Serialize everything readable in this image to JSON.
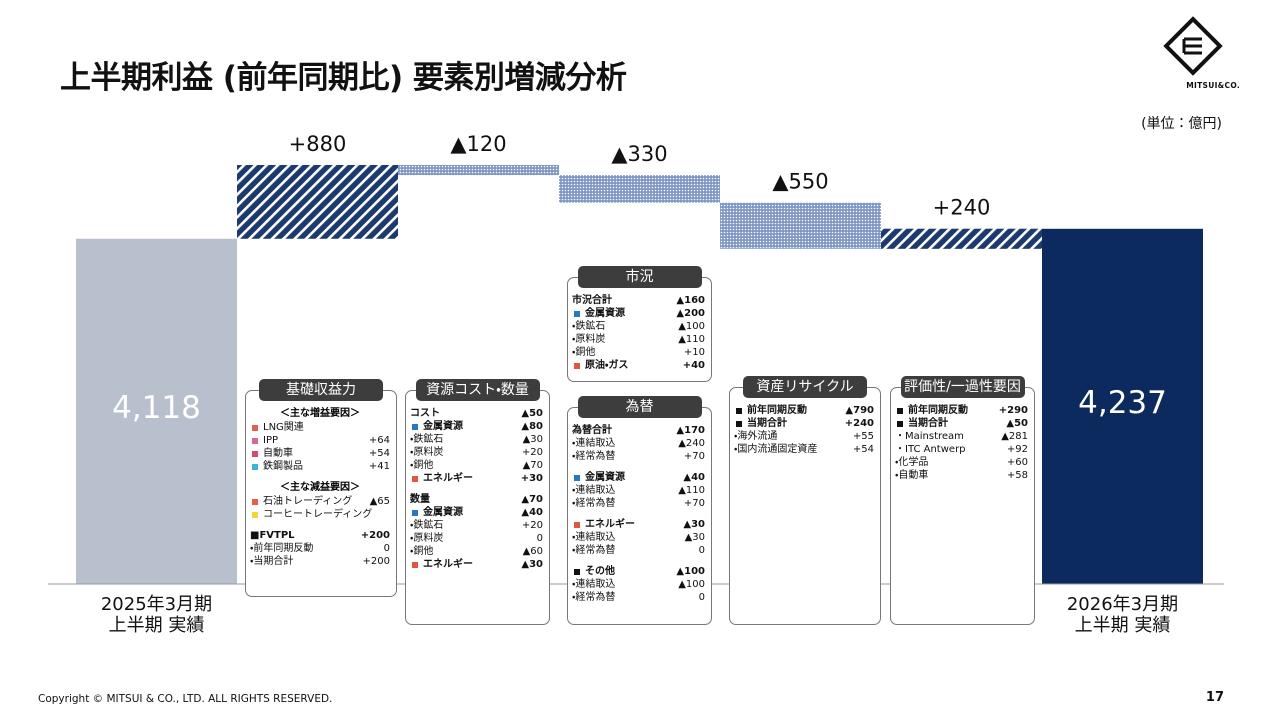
{
  "header": {
    "title": "上半期利益 (前年同期比) 要素別増減分析",
    "unit": "(単位：億円)"
  },
  "logo": {
    "text": "MITSUI&CO."
  },
  "chart_data": {
    "type": "waterfall",
    "categories": [
      "2025年3月期\n上半期 実績",
      null,
      null,
      null,
      null,
      null,
      "2026年3月期\n上半期 実績"
    ],
    "values": [
      4118,
      880,
      -120,
      -330,
      -550,
      240,
      4237
    ],
    "value_labels": [
      "4,118",
      "+880",
      "▲120",
      "▲330",
      "▲550",
      "+240",
      "4,237"
    ],
    "colors": {
      "start": "#b9c0cd",
      "end": "#0c2a5e",
      "increase": "#1d3a6e",
      "decrease": "#7d96c4"
    }
  },
  "panels": [
    {
      "title": "基礎収益力",
      "groups": [
        {
          "heading": "＜主な増益要因＞",
          "rows": [
            {
              "label": "LNG関連",
              "color": "#e2604f"
            },
            {
              "label": "IPP",
              "value": "+64",
              "color": "#d9679b"
            },
            {
              "label": "自動車",
              "value": "+54",
              "color": "#d34c6c"
            },
            {
              "label": "鉄鋼製品",
              "value": "+41",
              "color": "#3fb4d8"
            }
          ]
        },
        {
          "heading": "＜主な減益要因＞",
          "rows": [
            {
              "label": "石油トレーディング",
              "value": "▲65",
              "color": "#e2604f"
            },
            {
              "label": "コーヒートレーディング",
              "color": "#f3d53c"
            }
          ]
        },
        {
          "rows": [
            {
              "label": "■FVTPL",
              "value": "+200",
              "bold": true
            },
            {
              "label": "・前年同期反動",
              "value": "0"
            },
            {
              "label": "・当期合計",
              "value": "+200"
            }
          ]
        }
      ]
    },
    {
      "title": "資源コスト・数量",
      "groups": [
        {
          "rows": [
            {
              "label": "コスト",
              "value": "▲50",
              "bold": true
            },
            {
              "label": "金属資源",
              "value": "▲80",
              "bold": true,
              "color": "#2878c0"
            },
            {
              "label": "・鉄鉱石",
              "value": "▲30"
            },
            {
              "label": "・原料炭",
              "value": "+20"
            },
            {
              "label": "・銅他",
              "value": "▲70"
            },
            {
              "label": "エネルギー",
              "value": "+30",
              "bold": true,
              "color": "#e2553f"
            }
          ]
        },
        {
          "rows": [
            {
              "label": "数量",
              "value": "▲70",
              "bold": true
            },
            {
              "label": "金属資源",
              "value": "▲40",
              "bold": true,
              "color": "#2878c0"
            },
            {
              "label": "・鉄鉱石",
              "value": "+20"
            },
            {
              "label": "・原料炭",
              "value": "0"
            },
            {
              "label": "・銅他",
              "value": "▲60"
            },
            {
              "label": "エネルギー",
              "value": "▲30",
              "bold": true,
              "color": "#e2553f"
            }
          ]
        }
      ]
    },
    {
      "title": "市況",
      "groups": [
        {
          "rows": [
            {
              "label": "市況合計",
              "value": "▲160",
              "bold": true
            },
            {
              "label": "金属資源",
              "value": "▲200",
              "bold": true,
              "color": "#2878c0"
            },
            {
              "label": "・鉄鉱石",
              "value": "▲100"
            },
            {
              "label": "・原料炭",
              "value": "▲110"
            },
            {
              "label": "・銅他",
              "value": "+10"
            },
            {
              "label": "原油・ガス",
              "value": "+40",
              "bold": true,
              "color": "#e2553f"
            }
          ]
        }
      ]
    },
    {
      "title": "為替",
      "groups": [
        {
          "rows": [
            {
              "label": "為替合計",
              "value": "▲170",
              "bold": true
            },
            {
              "label": "・連結取込",
              "value": "▲240"
            },
            {
              "label": "・経常為替",
              "value": "+70"
            }
          ]
        },
        {
          "rows": [
            {
              "label": "金属資源",
              "value": "▲40",
              "bold": true,
              "color": "#2878c0"
            },
            {
              "label": "・連結取込",
              "value": "▲110"
            },
            {
              "label": "・経常為替",
              "value": "+70"
            }
          ]
        },
        {
          "rows": [
            {
              "label": "エネルギー",
              "value": "▲30",
              "bold": true,
              "color": "#e2553f"
            },
            {
              "label": "・連結取込",
              "value": "▲30"
            },
            {
              "label": "・経常為替",
              "value": "0"
            }
          ]
        },
        {
          "rows": [
            {
              "label": "その他",
              "value": "▲100",
              "bold": true,
              "color": "#111111"
            },
            {
              "label": "・連結取込",
              "value": "▲100"
            },
            {
              "label": "・経常為替",
              "value": "0"
            }
          ]
        }
      ]
    },
    {
      "title": "資産リサイクル",
      "groups": [
        {
          "rows": [
            {
              "label": "前年同期反動",
              "value": "▲790",
              "bold": true,
              "color": "#111111"
            },
            {
              "label": "当期合計",
              "value": "+240",
              "bold": true,
              "color": "#111111"
            },
            {
              "label": "・海外流通",
              "value": "+55"
            },
            {
              "label": "・国内流通固定資産",
              "value": "+54"
            }
          ]
        }
      ]
    },
    {
      "title": "評価性/一過性要因",
      "groups": [
        {
          "rows": [
            {
              "label": "前年同期反動",
              "value": "+290",
              "bold": true,
              "color": "#111111"
            },
            {
              "label": "当期合計",
              "value": "▲50",
              "bold": true,
              "color": "#111111"
            },
            {
              "label": "・Mainstream",
              "value": "▲281"
            },
            {
              "label": "・ITC Antwerp",
              "value": "+92"
            },
            {
              "label": "・化学品",
              "value": "+60"
            },
            {
              "label": "・自動車",
              "value": "+58"
            }
          ]
        }
      ]
    }
  ],
  "footer": {
    "copyright": "Copyright © MITSUI & CO., LTD. ALL RIGHTS RESERVED.",
    "page": "17"
  }
}
